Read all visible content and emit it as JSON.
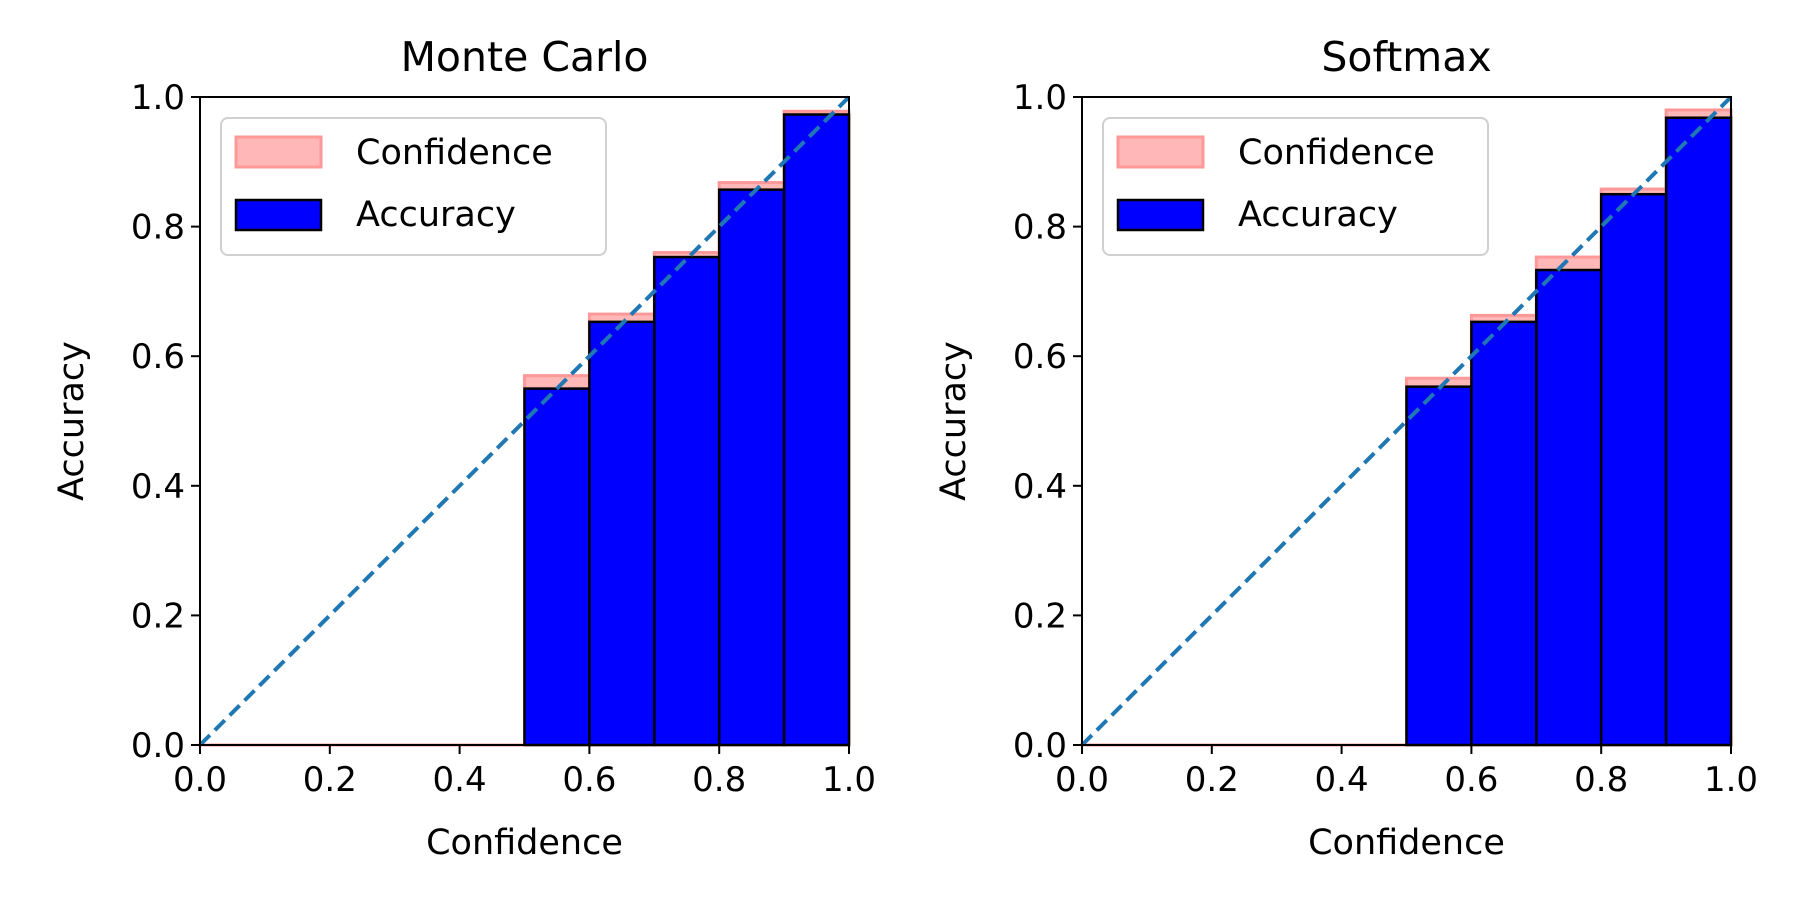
{
  "chart_data": [
    {
      "type": "bar",
      "title": "Monte Carlo",
      "xlabel": "Confidence",
      "ylabel": "Accuracy",
      "xlim": [
        0,
        1
      ],
      "ylim": [
        0,
        1
      ],
      "xticks": [
        "0.0",
        "0.2",
        "0.4",
        "0.6",
        "0.8",
        "1.0"
      ],
      "yticks": [
        "0.0",
        "0.2",
        "0.4",
        "0.6",
        "0.8",
        "1.0"
      ],
      "bin_edges": [
        0.0,
        0.1,
        0.2,
        0.3,
        0.4,
        0.5,
        0.6,
        0.7,
        0.8,
        0.9,
        1.0
      ],
      "series": [
        {
          "name": "Confidence",
          "color": "#ff9999",
          "values": [
            0,
            0,
            0,
            0,
            0,
            0.57,
            0.665,
            0.76,
            0.868,
            0.978
          ]
        },
        {
          "name": "Accuracy",
          "color": "#0000ff",
          "values": [
            0,
            0,
            0,
            0,
            0,
            0.55,
            0.653,
            0.753,
            0.857,
            0.973
          ]
        }
      ],
      "reference_line": {
        "from": [
          0,
          0
        ],
        "to": [
          1,
          1
        ],
        "style": "dashed",
        "color": "#1f77b4"
      },
      "legend": {
        "position": "upper-left",
        "entries": [
          "Confidence",
          "Accuracy"
        ]
      }
    },
    {
      "type": "bar",
      "title": "Softmax",
      "xlabel": "Confidence",
      "ylabel": "Accuracy",
      "xlim": [
        0,
        1
      ],
      "ylim": [
        0,
        1
      ],
      "xticks": [
        "0.0",
        "0.2",
        "0.4",
        "0.6",
        "0.8",
        "1.0"
      ],
      "yticks": [
        "0.0",
        "0.2",
        "0.4",
        "0.6",
        "0.8",
        "1.0"
      ],
      "bin_edges": [
        0.0,
        0.1,
        0.2,
        0.3,
        0.4,
        0.5,
        0.6,
        0.7,
        0.8,
        0.9,
        1.0
      ],
      "series": [
        {
          "name": "Confidence",
          "color": "#ff9999",
          "values": [
            0,
            0,
            0,
            0,
            0,
            0.566,
            0.663,
            0.753,
            0.858,
            0.98
          ]
        },
        {
          "name": "Accuracy",
          "color": "#0000ff",
          "values": [
            0,
            0,
            0,
            0,
            0,
            0.553,
            0.653,
            0.733,
            0.85,
            0.968
          ]
        }
      ],
      "reference_line": {
        "from": [
          0,
          0
        ],
        "to": [
          1,
          1
        ],
        "style": "dashed",
        "color": "#1f77b4"
      },
      "legend": {
        "position": "upper-left",
        "entries": [
          "Confidence",
          "Accuracy"
        ]
      }
    }
  ]
}
